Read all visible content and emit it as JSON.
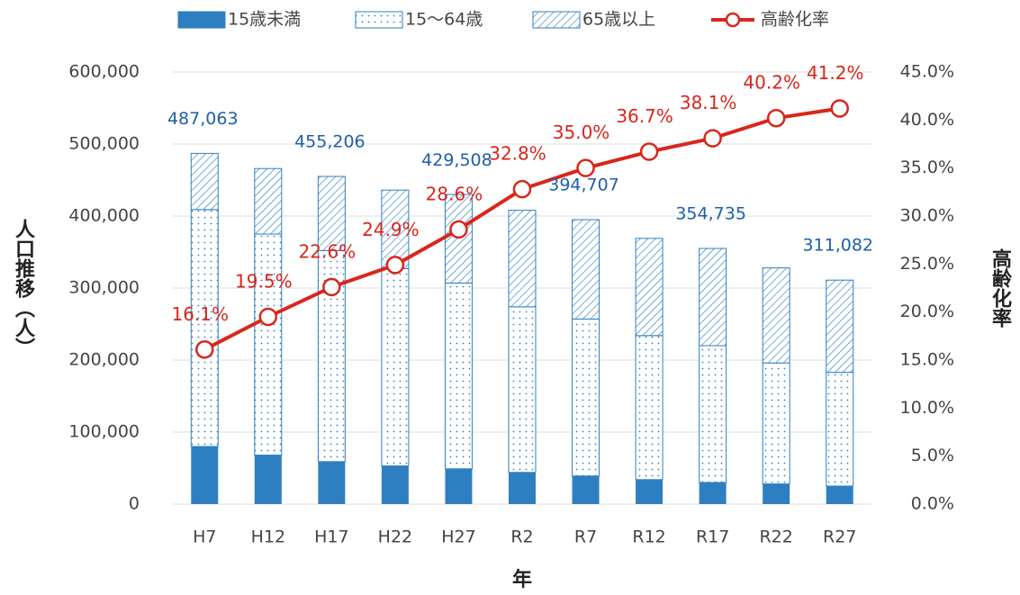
{
  "chart_data": {
    "type": "bar",
    "stacked": true,
    "categories": [
      "H7",
      "H12",
      "H17",
      "H22",
      "H27",
      "R2",
      "R7",
      "R12",
      "R17",
      "R22",
      "R27"
    ],
    "series": [
      {
        "name": "15歳未満",
        "color": "#2e7fc1",
        "pattern": "solid",
        "values": [
          80000,
          68000,
          59000,
          53000,
          49000,
          44000,
          39000,
          34000,
          30000,
          28000,
          25000
        ]
      },
      {
        "name": "15～64歳",
        "color": "#2e7fc1",
        "pattern": "dots",
        "values": [
          329000,
          307000,
          293000,
          274000,
          258000,
          230000,
          218000,
          200000,
          190000,
          168000,
          158000
        ]
      },
      {
        "name": "65歳以上",
        "color": "#2e7fc1",
        "pattern": "hatch",
        "values": [
          78000,
          91000,
          103000,
          109000,
          123000,
          134000,
          138000,
          135000,
          135000,
          132000,
          128000
        ]
      },
      {
        "name": "高齢化率",
        "type": "line",
        "axis": "y2",
        "color": "#d9261c",
        "values": [
          16.1,
          19.5,
          22.6,
          24.9,
          28.6,
          32.8,
          35.0,
          36.7,
          38.1,
          40.2,
          41.2
        ],
        "value_labels": [
          "16.1%",
          "19.5%",
          "22.6%",
          "24.9%",
          "28.6%",
          "32.8%",
          "35.0%",
          "36.7%",
          "38.1%",
          "40.2%",
          "41.2%"
        ]
      }
    ],
    "totals": {
      "color": "#1f5fa8",
      "values": [
        487063,
        null,
        455206,
        null,
        429508,
        null,
        394707,
        null,
        354735,
        null,
        311082
      ],
      "value_labels": [
        "487,063",
        null,
        "455,206",
        null,
        "429,508",
        null,
        "394,707",
        null,
        "354,735",
        null,
        "311,082"
      ]
    },
    "y_label": "人口推移（人）",
    "y2_label": "高齢化率",
    "x_label": "年",
    "ylim": [
      0,
      600000
    ],
    "yticks": [
      0,
      {
        "value": 100000,
        "label": "100,000"
      },
      {
        "value": 200000,
        "label": "200,000"
      },
      {
        "value": 300000,
        "label": "300,000"
      },
      {
        "value": 400000,
        "label": "400,000"
      },
      {
        "value": 500000,
        "label": "500,000"
      },
      {
        "value": 600000,
        "label": "600,000"
      }
    ],
    "y2lim": [
      0,
      45
    ],
    "y2ticks": [
      {
        "value": 0,
        "label": "0.0%"
      },
      {
        "value": 5,
        "label": "5.0%"
      },
      {
        "value": 10,
        "label": "10.0%"
      },
      {
        "value": 15,
        "label": "15.0%"
      },
      {
        "value": 20,
        "label": "20.0%"
      },
      {
        "value": 25,
        "label": "25.0%"
      },
      {
        "value": 30,
        "label": "30.0%"
      },
      {
        "value": 35,
        "label": "35.0%"
      },
      {
        "value": 40,
        "label": "40.0%"
      },
      {
        "value": 45,
        "label": "45.0%"
      }
    ],
    "grid": true,
    "legend": "top"
  }
}
